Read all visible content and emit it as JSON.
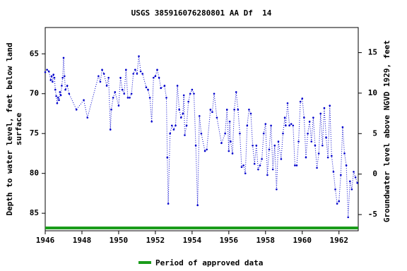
{
  "chart_data": {
    "type": "line",
    "title": "USGS 385916076280801 AA Df  14",
    "ylabel": [
      "Depth to water level, feet below land",
      "surface"
    ],
    "y2label": "Groundwater level above NGVD 1929, feet",
    "color": "#0000cc",
    "x": [
      1946.0,
      1946.1,
      1946.2,
      1946.3,
      1946.35,
      1946.4,
      1946.45,
      1946.5,
      1946.55,
      1946.6,
      1946.65,
      1946.7,
      1946.75,
      1946.8,
      1946.85,
      1946.9,
      1946.95,
      1947.0,
      1947.05,
      1947.1,
      1947.2,
      1947.3,
      1947.7,
      1948.1,
      1948.3,
      1948.9,
      1949.0,
      1949.1,
      1949.2,
      1949.35,
      1949.45,
      1949.55,
      1949.6,
      1949.7,
      1949.8,
      1950.0,
      1950.1,
      1950.2,
      1950.3,
      1950.4,
      1950.5,
      1950.6,
      1950.7,
      1950.8,
      1950.9,
      1951.0,
      1951.1,
      1951.2,
      1951.3,
      1951.5,
      1951.6,
      1951.7,
      1951.8,
      1951.9,
      1952.0,
      1952.1,
      1952.2,
      1952.3,
      1952.5,
      1952.6,
      1952.65,
      1952.7,
      1952.8,
      1952.9,
      1953.0,
      1953.1,
      1953.2,
      1953.3,
      1953.4,
      1953.5,
      1953.55,
      1953.6,
      1953.7,
      1953.8,
      1953.9,
      1954.0,
      1954.1,
      1954.2,
      1954.3,
      1954.4,
      1954.5,
      1954.7,
      1954.8,
      1955.0,
      1955.1,
      1955.2,
      1955.35,
      1955.6,
      1955.8,
      1955.9,
      1956.0,
      1956.05,
      1956.1,
      1956.2,
      1956.3,
      1956.4,
      1956.5,
      1956.6,
      1956.7,
      1956.8,
      1956.9,
      1957.0,
      1957.1,
      1957.2,
      1957.3,
      1957.4,
      1957.5,
      1957.6,
      1957.7,
      1957.8,
      1957.9,
      1958.0,
      1958.1,
      1958.2,
      1958.3,
      1958.4,
      1958.5,
      1958.6,
      1958.7,
      1958.85,
      1958.95,
      1959.05,
      1959.1,
      1959.2,
      1959.3,
      1959.4,
      1959.5,
      1959.6,
      1959.7,
      1959.8,
      1959.9,
      1960.0,
      1960.1,
      1960.2,
      1960.3,
      1960.4,
      1960.5,
      1960.6,
      1960.7,
      1960.8,
      1960.9,
      1961.0,
      1961.1,
      1961.2,
      1961.3,
      1961.4,
      1961.5,
      1961.6,
      1961.7,
      1961.8,
      1961.9,
      1962.0,
      1962.1,
      1962.2,
      1962.3,
      1962.4,
      1962.5,
      1962.6,
      1962.7,
      1962.8,
      1962.9,
      1963.0
    ],
    "values": [
      67.3,
      67.0,
      67.2,
      68.3,
      67.8,
      68.5,
      67.6,
      68.0,
      69.5,
      70.3,
      71.2,
      70.5,
      70.8,
      69.8,
      70.2,
      69.0,
      68.0,
      65.5,
      67.8,
      69.5,
      69.0,
      70.0,
      72.0,
      70.8,
      73.0,
      67.8,
      68.5,
      67.0,
      67.5,
      69.0,
      68.0,
      74.5,
      72.0,
      70.5,
      69.8,
      71.5,
      68.0,
      69.5,
      70.0,
      67.0,
      70.5,
      70.5,
      70.0,
      67.5,
      67.0,
      67.5,
      65.3,
      67.2,
      67.5,
      69.2,
      69.5,
      70.5,
      73.5,
      68.0,
      67.8,
      67.0,
      68.0,
      69.3,
      69.0,
      70.5,
      78.0,
      83.8,
      75.0,
      74.0,
      74.5,
      74.0,
      69.0,
      72.0,
      73.0,
      72.5,
      70.2,
      75.2,
      74.0,
      71.0,
      70.0,
      69.5,
      70.0,
      76.5,
      84.0,
      72.8,
      75.0,
      77.2,
      77.0,
      72.0,
      72.3,
      70.0,
      73.0,
      76.2,
      75.0,
      72.0,
      77.2,
      73.5,
      76.0,
      77.5,
      72.0,
      69.8,
      72.0,
      75.0,
      79.2,
      79.0,
      80.0,
      74.0,
      72.0,
      72.5,
      76.5,
      78.8,
      76.5,
      79.5,
      79.0,
      78.2,
      75.0,
      73.8,
      80.2,
      77.0,
      74.0,
      79.5,
      76.5,
      82.0,
      76.0,
      78.2,
      75.0,
      73.0,
      74.0,
      71.2,
      74.0,
      73.8,
      74.0,
      79.0,
      79.0,
      76.0,
      71.0,
      70.6,
      73.0,
      78.0,
      75.0,
      73.5,
      76.0,
      73.0,
      76.5,
      79.3,
      77.5,
      72.5,
      76.5,
      71.8,
      75.5,
      78.0,
      71.5,
      77.8,
      79.8,
      82.0,
      83.8,
      83.5,
      80.2,
      74.2,
      77.5,
      79.0,
      85.5,
      81.0,
      82.0,
      79.8,
      80.5,
      81.2
    ],
    "xlim": [
      1946,
      1963.05
    ],
    "xticks": [
      1946,
      1948,
      1950,
      1952,
      1954,
      1956,
      1958,
      1960,
      1962
    ],
    "ylim": [
      87.2,
      61.7
    ],
    "yticks": [
      65,
      70,
      75,
      80,
      85
    ],
    "y2lim": [
      -7.0,
      18.1
    ],
    "y2ticks": [
      15,
      10,
      5,
      0,
      -5
    ],
    "approved_period": {
      "name": "Period of approved data",
      "color": "#1a9c1a",
      "x": [
        1946,
        1963.05
      ]
    }
  }
}
